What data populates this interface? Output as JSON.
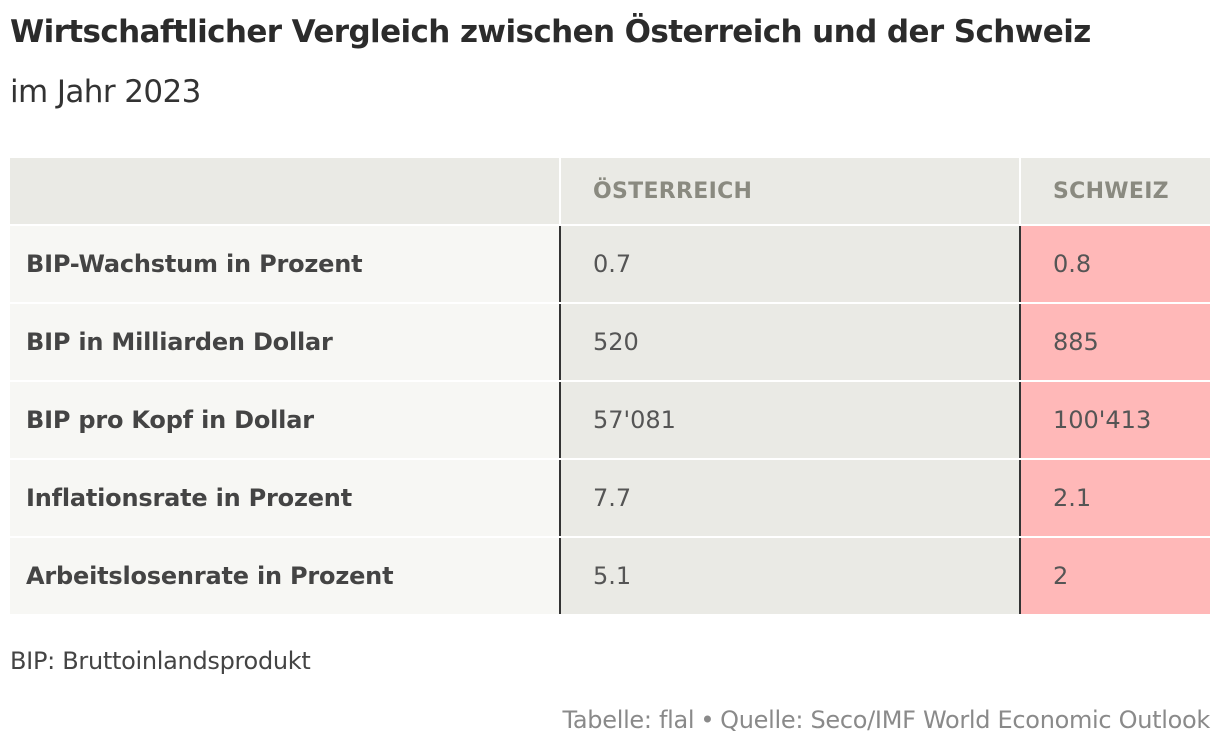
{
  "title": "Wirtschaftlicher Vergleich zwischen Österreich und der Schweiz",
  "subtitle": "im Jahr 2023",
  "chart_data": {
    "type": "table",
    "columns": [
      "",
      "ÖSTERREICH",
      "SCHWEIZ"
    ],
    "rows": [
      {
        "label": "BIP-Wachstum in Prozent",
        "values": [
          "0.7",
          "0.8"
        ]
      },
      {
        "label": "BIP in Milliarden Dollar",
        "values": [
          "520",
          "885"
        ]
      },
      {
        "label": "BIP pro Kopf in Dollar",
        "values": [
          "57'081",
          "100'413"
        ]
      },
      {
        "label": "Inflationsrate in Prozent",
        "values": [
          "7.7",
          "2.1"
        ]
      },
      {
        "label": "Arbeitslosenrate in Prozent",
        "values": [
          "5.1",
          "2"
        ]
      }
    ],
    "highlight_column": "SCHWEIZ",
    "colors": {
      "header_bg": "#eaeae5",
      "label_bg": "#f7f7f4",
      "austria_bg": "#eaeae5",
      "switzerland_bg": "#ffb8b8"
    }
  },
  "note": "BIP: Bruttoinlandsprodukt",
  "footer": {
    "credit": "Tabelle: flal",
    "separator": "•",
    "source": "Quelle: Seco/IMF World Economic Outlook"
  }
}
